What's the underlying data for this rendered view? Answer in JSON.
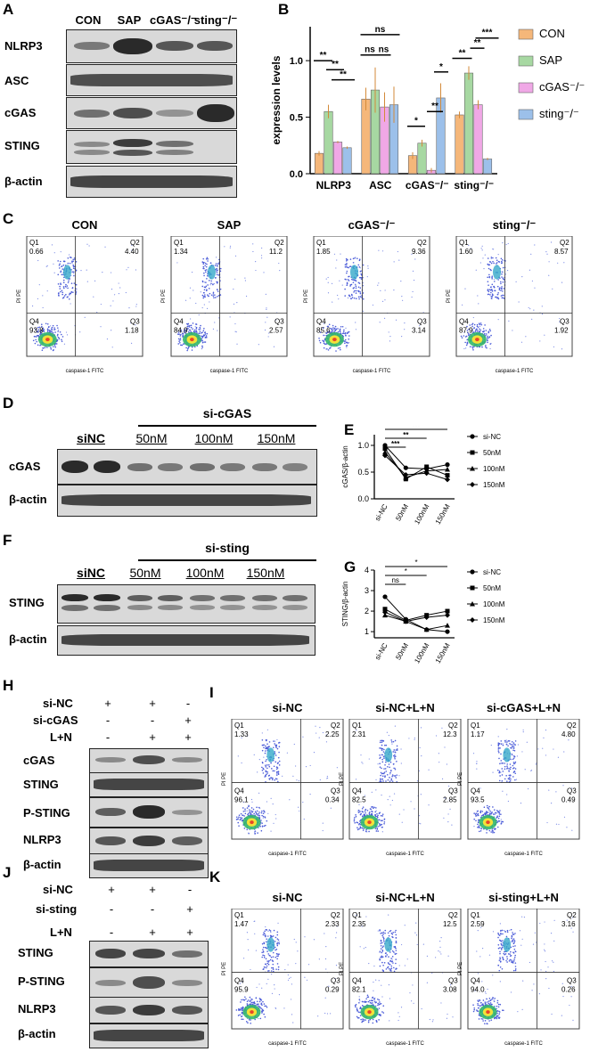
{
  "panel_letters": [
    "A",
    "B",
    "C",
    "D",
    "E",
    "F",
    "G",
    "H",
    "I",
    "J",
    "K"
  ],
  "panelA": {
    "columns": [
      "CON",
      "SAP",
      "cGAS⁻/⁻",
      "sting⁻/⁻"
    ],
    "rows": [
      "NLRP3",
      "ASC",
      "cGAS",
      "STING",
      "β-actin"
    ]
  },
  "panelC": {
    "titles": [
      "CON",
      "SAP",
      "cGAS⁻/⁻",
      "sting⁻/⁻"
    ],
    "quadrants": [
      {
        "Q1": "0.66",
        "Q2": "4.40",
        "Q3": "1.18",
        "Q4": "93.8"
      },
      {
        "Q1": "1.34",
        "Q2": "11.2",
        "Q3": "2.57",
        "Q4": "84.9"
      },
      {
        "Q1": "1.85",
        "Q2": "9.36",
        "Q3": "3.14",
        "Q4": "85.6"
      },
      {
        "Q1": "1.60",
        "Q2": "8.57",
        "Q3": "1.92",
        "Q4": "87.9"
      }
    ],
    "xlabel": "caspase-1 FITC",
    "ylabel": "PI PE",
    "q_names": [
      "Q1",
      "Q2",
      "Q3",
      "Q4"
    ]
  },
  "panelD": {
    "group": "si-cGAS",
    "lanes": [
      "siNC",
      "50nM",
      "100nM",
      "150nM"
    ],
    "rows": [
      "cGAS",
      "β-actin"
    ]
  },
  "panelF": {
    "group": "si-sting",
    "lanes": [
      "siNC",
      "50nM",
      "100nM",
      "150nM"
    ],
    "rows": [
      "STING",
      "β-actin"
    ]
  },
  "panelH": {
    "conditions": [
      {
        "name": "si-NC",
        "marks": [
          "+",
          "+",
          "-"
        ]
      },
      {
        "name": "si-cGAS",
        "marks": [
          "-",
          "-",
          "+"
        ]
      },
      {
        "name": "L+N",
        "marks": [
          "-",
          "+",
          "+"
        ]
      }
    ],
    "rows": [
      "cGAS",
      "STING",
      "P-STING",
      "NLRP3",
      "β-actin"
    ]
  },
  "panelI": {
    "titles": [
      "si-NC",
      "si-NC+L+N",
      "si-cGAS+L+N"
    ],
    "quadrants": [
      {
        "Q1": "1.33",
        "Q2": "2.25",
        "Q3": "0.34",
        "Q4": "96.1"
      },
      {
        "Q1": "2.31",
        "Q2": "12.3",
        "Q3": "2.85",
        "Q4": "82.5"
      },
      {
        "Q1": "1.17",
        "Q2": "4.80",
        "Q3": "0.49",
        "Q4": "93.5"
      }
    ]
  },
  "panelJ": {
    "conditions": [
      {
        "name": "si-NC",
        "marks": [
          "+",
          "+",
          "-"
        ]
      },
      {
        "name": "si-sting",
        "marks": [
          "-",
          "-",
          "+"
        ]
      },
      {
        "name": "L+N",
        "marks": [
          "-",
          "+",
          "+"
        ]
      }
    ],
    "rows": [
      "STING",
      "P-STING",
      "NLRP3",
      "β-actin"
    ]
  },
  "panelK": {
    "titles": [
      "si-NC",
      "si-NC+L+N",
      "si-sting+L+N"
    ],
    "quadrants": [
      {
        "Q1": "1.47",
        "Q2": "2.33",
        "Q3": "0.29",
        "Q4": "95.9"
      },
      {
        "Q1": "2.35",
        "Q2": "12.5",
        "Q3": "3.08",
        "Q4": "82.1"
      },
      {
        "Q1": "2.59",
        "Q2": "3.16",
        "Q3": "0.26",
        "Q4": "94.0"
      }
    ]
  },
  "chart_data": [
    {
      "panel": "B",
      "type": "bar",
      "categories": [
        "NLRP3",
        "ASC",
        "cGAS⁻/⁻",
        "sting⁻/⁻"
      ],
      "ylabel": "expression levels",
      "ylim": [
        0,
        1.3
      ],
      "yticks": [
        "0.0",
        "0.5",
        "1.0"
      ],
      "series": [
        {
          "name": "CON",
          "color": "#f5b77a",
          "values": [
            0.18,
            0.66,
            0.16,
            0.52
          ],
          "err": [
            0.02,
            0.1,
            0.03,
            0.03
          ]
        },
        {
          "name": "SAP",
          "color": "#a7d8a2",
          "values": [
            0.55,
            0.74,
            0.27,
            0.89
          ],
          "err": [
            0.06,
            0.2,
            0.03,
            0.06
          ]
        },
        {
          "name": "cGAS⁻/⁻",
          "color": "#f0a8e6",
          "values": [
            0.28,
            0.59,
            0.03,
            0.61
          ],
          "err": [
            0.01,
            0.13,
            0.02,
            0.04
          ]
        },
        {
          "name": "sting⁻/⁻",
          "color": "#9cc0ea",
          "values": [
            0.23,
            0.61,
            0.67,
            0.13
          ],
          "err": [
            0.01,
            0.16,
            0.13,
            0.01
          ]
        }
      ],
      "significance": [
        "**",
        "**",
        "**",
        "ns",
        "ns",
        "ns",
        "*",
        "**",
        "*",
        "**",
        "**",
        "***"
      ],
      "legend": "right"
    },
    {
      "panel": "E",
      "type": "line",
      "categories": [
        "si-NC",
        "50nM",
        "100nM",
        "150nM"
      ],
      "ylabel": "cGAS/β-actin",
      "ylim": [
        0,
        1.2
      ],
      "yticks": [
        "0.0",
        "0.5",
        "1.0"
      ],
      "series": [
        {
          "name": "si-NC",
          "marker": "circle",
          "values": [
            1.0,
            0.58,
            0.56,
            0.64
          ]
        },
        {
          "name": "50nM",
          "marker": "square",
          "values": [
            0.94,
            0.37,
            0.6,
            0.44
          ]
        },
        {
          "name": "100nM",
          "marker": "triangle",
          "values": [
            0.87,
            0.4,
            0.52,
            0.55
          ]
        },
        {
          "name": "150nM",
          "marker": "diamond",
          "values": [
            0.81,
            0.45,
            0.48,
            0.36
          ]
        }
      ],
      "significance": [
        "***",
        "**",
        "***"
      ],
      "legend": "right"
    },
    {
      "panel": "G",
      "type": "line",
      "categories": [
        "si-NC",
        "50nM",
        "100nM",
        "150nM"
      ],
      "ylabel": "STING/β-actin",
      "ylim": [
        0.7,
        4
      ],
      "yticks": [
        "1",
        "2",
        "3",
        "4"
      ],
      "series": [
        {
          "name": "si-NC",
          "marker": "circle",
          "values": [
            2.7,
            1.6,
            1.1,
            1.0
          ]
        },
        {
          "name": "50nM",
          "marker": "square",
          "values": [
            2.1,
            1.55,
            1.8,
            2.0
          ]
        },
        {
          "name": "100nM",
          "marker": "triangle",
          "values": [
            1.8,
            1.5,
            1.1,
            1.3
          ]
        },
        {
          "name": "150nM",
          "marker": "diamond",
          "values": [
            1.95,
            1.5,
            1.7,
            1.8
          ]
        }
      ],
      "significance": [
        "ns",
        "*",
        "*"
      ],
      "legend": "right"
    }
  ]
}
